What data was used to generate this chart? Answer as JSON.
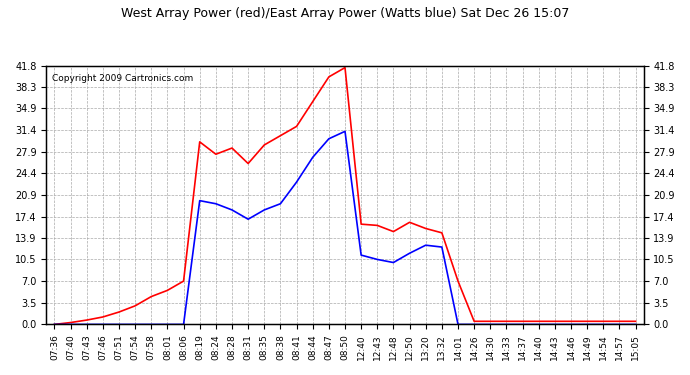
{
  "title": "West Array Power (red)/East Array Power (Watts blue) Sat Dec 26 15:07",
  "copyright": "Copyright 2009 Cartronics.com",
  "y_ticks": [
    0.0,
    3.5,
    7.0,
    10.5,
    13.9,
    17.4,
    20.9,
    24.4,
    27.9,
    31.4,
    34.9,
    38.3,
    41.8
  ],
  "ylim": [
    0.0,
    41.8
  ],
  "background_color": "#ffffff",
  "x_labels": [
    "07:36",
    "07:40",
    "07:43",
    "07:46",
    "07:51",
    "07:54",
    "07:58",
    "08:01",
    "08:06",
    "08:19",
    "08:24",
    "08:28",
    "08:31",
    "08:35",
    "08:38",
    "08:41",
    "08:44",
    "08:47",
    "08:50",
    "12:40",
    "12:43",
    "12:48",
    "12:50",
    "13:20",
    "13:32",
    "14:01",
    "14:26",
    "14:30",
    "14:33",
    "14:37",
    "14:40",
    "14:43",
    "14:46",
    "14:49",
    "14:54",
    "14:57",
    "15:05"
  ],
  "red_y": [
    0.0,
    0.3,
    0.7,
    1.2,
    2.0,
    3.0,
    4.5,
    5.5,
    7.0,
    29.5,
    27.5,
    28.5,
    26.0,
    29.0,
    30.5,
    32.0,
    36.0,
    40.0,
    41.5,
    16.2,
    16.0,
    15.0,
    16.5,
    15.5,
    14.8,
    7.0,
    0.5,
    0.5,
    0.5,
    0.5,
    0.5,
    0.5,
    0.5,
    0.5,
    0.5,
    0.5,
    0.5
  ],
  "blue_y": [
    0.0,
    0.0,
    0.0,
    0.0,
    0.0,
    0.0,
    0.0,
    0.0,
    0.0,
    20.0,
    19.5,
    18.5,
    17.0,
    18.5,
    19.5,
    23.0,
    27.0,
    30.0,
    31.2,
    11.2,
    10.5,
    10.0,
    11.5,
    12.8,
    12.5,
    0.0,
    0.0,
    0.0,
    0.0,
    0.0,
    0.0,
    0.0,
    0.0,
    0.0,
    0.0,
    0.0,
    0.0
  ]
}
